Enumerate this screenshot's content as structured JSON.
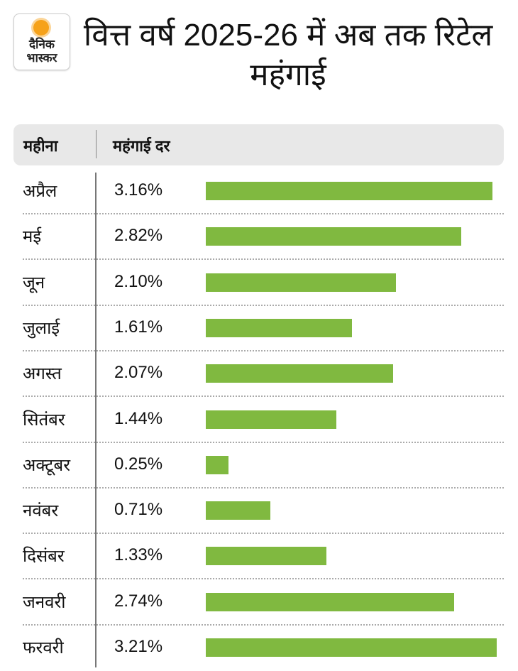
{
  "logo": {
    "line1": "दैनिक",
    "line2": "भास्कर"
  },
  "title": "वित्त वर्ष 2025-26 में अब तक रिटेल महंगाई",
  "header": {
    "col1": "महीना",
    "col2": "महंगाई दर"
  },
  "colors": {
    "bar": "#80b940",
    "header_bg": "#e8e8e8",
    "logo_sun": "#f6a21a"
  },
  "chart_data": {
    "type": "bar",
    "orientation": "horizontal",
    "title": "वित्त वर्ष 2025-26 में अब तक रिटेल महंगाई",
    "categories": [
      "अप्रैल",
      "मई",
      "जून",
      "जुलाई",
      "अगस्त",
      "सितंबर",
      "अक्टूबर",
      "नवंबर",
      "दिसंबर",
      "जनवरी",
      "फरवरी"
    ],
    "values": [
      3.16,
      2.82,
      2.1,
      1.61,
      2.07,
      1.44,
      0.25,
      0.71,
      1.33,
      2.74,
      3.21
    ],
    "labels": [
      "3.16%",
      "2.82%",
      "2.10%",
      "1.61%",
      "2.07%",
      "1.44%",
      "0.25%",
      "0.71%",
      "1.33%",
      "2.74%",
      "3.21%"
    ],
    "unit": "%",
    "grid": false
  }
}
